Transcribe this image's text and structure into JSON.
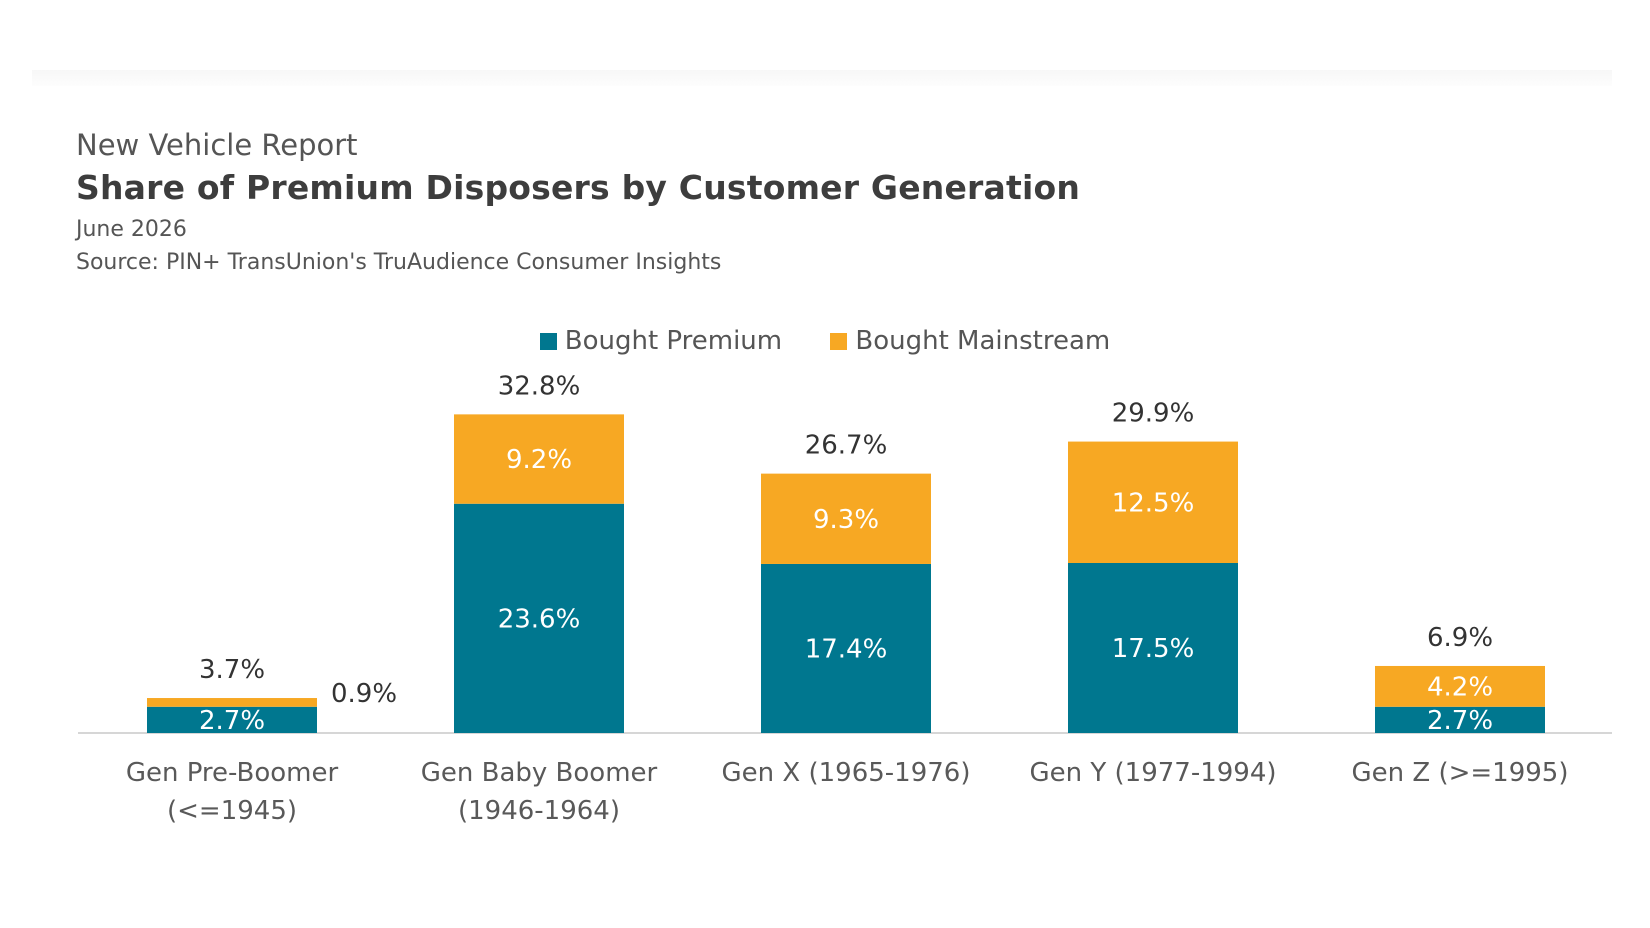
{
  "header": {
    "report": "New Vehicle Report",
    "title": "Share of Premium Disposers by Customer Generation",
    "date": "June 2026",
    "source": "Source: PIN+ TransUnion's TruAudience Consumer Insights"
  },
  "colors": {
    "premium": "#00778f",
    "mainstream": "#f7a823",
    "axis": "#d6d6d6"
  },
  "chart_data": {
    "type": "bar",
    "stacked": true,
    "categories": [
      [
        "Gen Pre-Boomer",
        "(<=1945)"
      ],
      [
        "Gen Baby Boomer",
        "(1946-1964)"
      ],
      [
        "Gen X (1965-1976)"
      ],
      [
        "Gen Y (1977-1994)"
      ],
      [
        "Gen Z (>=1995)"
      ]
    ],
    "series": [
      {
        "name": "Bought Premium",
        "values": [
          2.7,
          23.6,
          17.4,
          17.5,
          2.7
        ],
        "labels": [
          "2.7%",
          "23.6%",
          "17.4%",
          "17.5%",
          "2.7%"
        ]
      },
      {
        "name": "Bought Mainstream",
        "values": [
          0.9,
          9.2,
          9.3,
          12.5,
          4.2
        ],
        "labels": [
          "0.9%",
          "9.2%",
          "9.3%",
          "12.5%",
          "4.2%"
        ]
      }
    ],
    "totals": [
      "3.7%",
      "32.8%",
      "26.7%",
      "29.9%",
      "6.9%"
    ],
    "ylim": [
      0,
      35
    ],
    "legend_position": "top-center",
    "grid": false
  }
}
